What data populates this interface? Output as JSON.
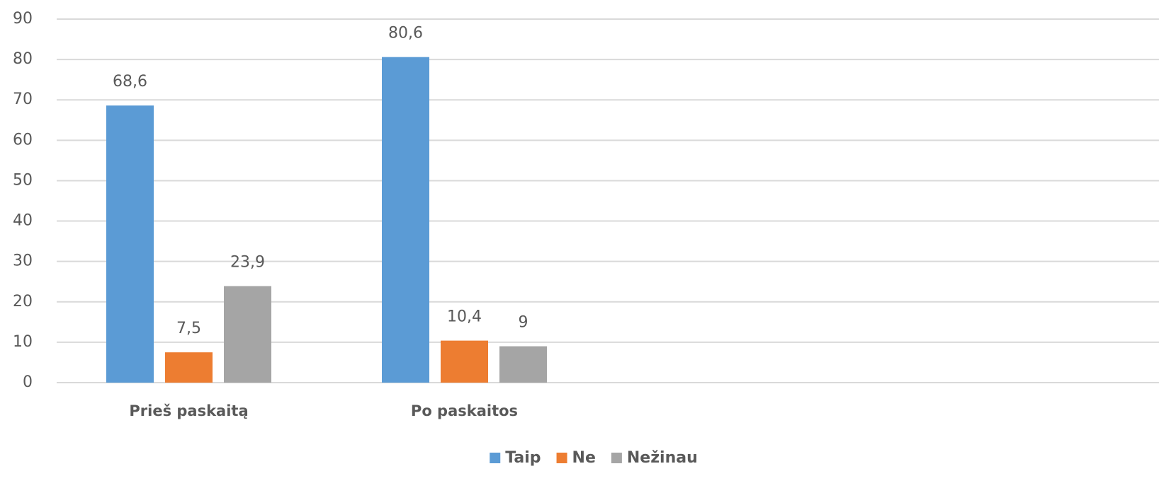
{
  "chart_data": {
    "type": "bar",
    "categories": [
      "Prieš paskaitą",
      "Po paskaitos",
      null,
      null
    ],
    "series": [
      {
        "name": "Taip",
        "color": "#5b9bd5",
        "values": [
          68.6,
          80.6,
          null,
          null
        ],
        "value_labels": [
          "68,6",
          "80,6",
          null,
          null
        ]
      },
      {
        "name": "Ne",
        "color": "#ed7d31",
        "values": [
          7.5,
          10.4,
          null,
          null
        ],
        "value_labels": [
          "7,5",
          "10,4",
          null,
          null
        ]
      },
      {
        "name": "Nežinau",
        "color": "#a5a5a5",
        "values": [
          23.9,
          9,
          null,
          null
        ],
        "value_labels": [
          "23,9",
          "9",
          null,
          null
        ]
      }
    ],
    "ylim": [
      0,
      90
    ],
    "yticks": [
      0,
      10,
      20,
      30,
      40,
      50,
      60,
      70,
      80,
      90
    ],
    "grid": true,
    "legend": "bottom"
  }
}
